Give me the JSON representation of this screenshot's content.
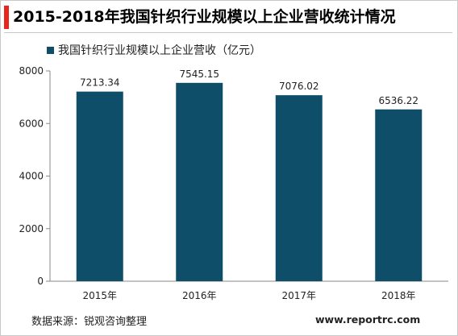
{
  "header": {
    "title": "2015-2018年我国针织行业规模以上企业营收统计情况"
  },
  "footer": {
    "source": "数据来源：锐观咨询整理",
    "website": "www.reportrc.com"
  },
  "colors": {
    "accent": "#e8261c",
    "bar": "#0e4e68"
  },
  "chart_data": {
    "type": "bar",
    "title": "2015-2018年我国针织行业规模以上企业营收统计情况",
    "xlabel": "",
    "ylabel": "",
    "categories": [
      "2015年",
      "2016年",
      "2017年",
      "2018年"
    ],
    "series": [
      {
        "name": "我国针织行业规模以上企业营收（亿元）",
        "values": [
          7213.34,
          7545.15,
          7076.02,
          6536.22
        ],
        "labels": [
          "7213.34",
          "7545.15",
          "7076.02",
          "6536.22"
        ]
      }
    ],
    "ylim": [
      0,
      8000
    ],
    "yticks": [
      0,
      2000,
      4000,
      6000,
      8000
    ],
    "grid": false,
    "legend": "top-left"
  }
}
